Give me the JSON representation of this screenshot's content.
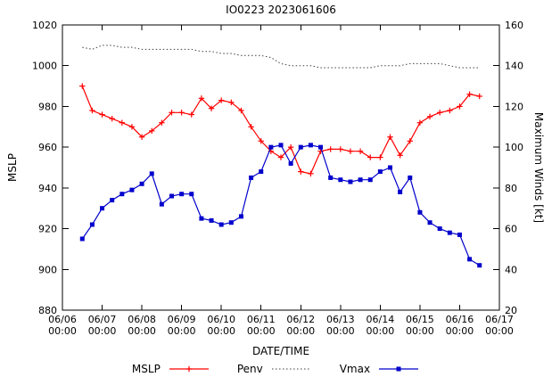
{
  "chart_data": {
    "type": "line",
    "title": "IO0223 2023061606",
    "xlabel": "DATE/TIME",
    "ylabel_left": "MSLP",
    "ylabel_right": "Maximum Winds [kt]",
    "grid": false,
    "legend_position": "bottom-center",
    "x_range_days": [
      0,
      11
    ],
    "x_tick_labels": [
      {
        "date": "06/06",
        "time": "00:00"
      },
      {
        "date": "06/07",
        "time": "00:00"
      },
      {
        "date": "06/08",
        "time": "00:00"
      },
      {
        "date": "06/09",
        "time": "00:00"
      },
      {
        "date": "06/10",
        "time": "00:00"
      },
      {
        "date": "06/11",
        "time": "00:00"
      },
      {
        "date": "06/12",
        "time": "00:00"
      },
      {
        "date": "06/13",
        "time": "00:00"
      },
      {
        "date": "06/14",
        "time": "00:00"
      },
      {
        "date": "06/15",
        "time": "00:00"
      },
      {
        "date": "06/16",
        "time": "00:00"
      },
      {
        "date": "06/17",
        "time": "00:00"
      }
    ],
    "y_left_range": [
      880,
      1020
    ],
    "y_left_ticks": [
      880,
      900,
      920,
      940,
      960,
      980,
      1000,
      1020
    ],
    "y_right_range": [
      20,
      160
    ],
    "y_right_ticks": [
      20,
      40,
      60,
      80,
      100,
      120,
      140,
      160
    ],
    "times": [
      "06/06 12:00",
      "06/06 18:00",
      "06/07 00:00",
      "06/07 06:00",
      "06/07 12:00",
      "06/07 18:00",
      "06/08 00:00",
      "06/08 06:00",
      "06/08 12:00",
      "06/08 18:00",
      "06/09 00:00",
      "06/09 06:00",
      "06/09 12:00",
      "06/09 18:00",
      "06/10 00:00",
      "06/10 06:00",
      "06/10 12:00",
      "06/10 18:00",
      "06/11 00:00",
      "06/11 06:00",
      "06/11 12:00",
      "06/11 18:00",
      "06/12 00:00",
      "06/12 06:00",
      "06/12 12:00",
      "06/12 18:00",
      "06/13 00:00",
      "06/13 06:00",
      "06/13 12:00",
      "06/13 18:00",
      "06/14 00:00",
      "06/14 06:00",
      "06/14 12:00",
      "06/14 18:00",
      "06/15 00:00",
      "06/15 06:00",
      "06/15 12:00",
      "06/15 18:00",
      "06/16 00:00",
      "06/16 06:00",
      "06/16 12:00"
    ],
    "x_days": [
      0.5,
      0.75,
      1.0,
      1.25,
      1.5,
      1.75,
      2.0,
      2.25,
      2.5,
      2.75,
      3.0,
      3.25,
      3.5,
      3.75,
      4.0,
      4.25,
      4.5,
      4.75,
      5.0,
      5.25,
      5.5,
      5.75,
      6.0,
      6.25,
      6.5,
      6.75,
      7.0,
      7.25,
      7.5,
      7.75,
      8.0,
      8.25,
      8.5,
      8.75,
      9.0,
      9.25,
      9.5,
      9.75,
      10.0,
      10.25,
      10.5
    ],
    "series": [
      {
        "name": "Penv",
        "axis": "left",
        "color": "#404040",
        "dash": "dotted",
        "marker": "none",
        "values": [
          1009,
          1008,
          1010,
          1010,
          1009,
          1009,
          1008,
          1008,
          1008,
          1008,
          1008,
          1008,
          1007,
          1007,
          1006,
          1006,
          1005,
          1005,
          1005,
          1004,
          1001,
          1000,
          1000,
          1000,
          999,
          999,
          999,
          999,
          999,
          999,
          1000,
          1000,
          1000,
          1001,
          1001,
          1001,
          1001,
          1000,
          999,
          999,
          999
        ]
      },
      {
        "name": "MSLP",
        "axis": "left",
        "color": "#ff0000",
        "dash": "solid",
        "marker": "plus",
        "values": [
          990,
          978,
          976,
          974,
          972,
          970,
          965,
          968,
          972,
          977,
          977,
          976,
          984,
          979,
          983,
          982,
          978,
          970,
          963,
          958,
          955,
          960,
          948,
          947,
          958,
          959,
          959,
          958,
          958,
          955,
          955,
          965,
          956,
          963,
          972,
          975,
          977,
          978,
          980,
          986,
          985
        ]
      },
      {
        "name": "Vmax",
        "axis": "right",
        "color": "#0000cc",
        "dash": "solid",
        "marker": "square",
        "values": [
          55,
          62,
          70,
          74,
          77,
          79,
          82,
          87,
          72,
          76,
          77,
          77,
          65,
          64,
          62,
          63,
          66,
          85,
          88,
          100,
          101,
          92,
          100,
          101,
          100,
          85,
          84,
          83,
          84,
          84,
          88,
          90,
          78,
          85,
          68,
          63,
          60,
          58,
          57,
          45,
          42
        ]
      }
    ]
  },
  "legend_order": [
    "MSLP",
    "Penv",
    "Vmax"
  ]
}
